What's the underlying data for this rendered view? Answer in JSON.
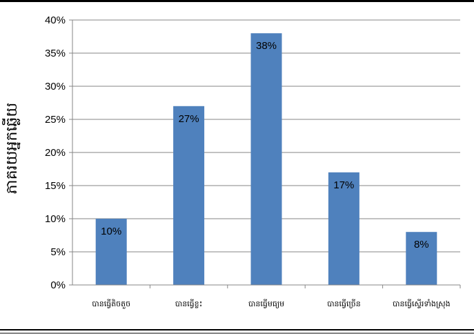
{
  "chart_data": {
    "type": "bar",
    "categories": [
      "បានធ្វើតិចតួច",
      "បានធ្វើខ្លះ",
      "បានធ្វើមធ្យម",
      "បានធ្វើច្រើន",
      "បានធ្វើស្ទើរទាំងស្រុង"
    ],
    "values": [
      10,
      27,
      38,
      17,
      8
    ],
    "data_labels": [
      "10%",
      "27%",
      "38%",
      "17%",
      "8%"
    ],
    "yticks": [
      "0%",
      "5%",
      "10%",
      "15%",
      "20%",
      "25%",
      "30%",
      "35%",
      "40%"
    ],
    "ylim": [
      0,
      40
    ],
    "ylabel": "ភាគរយអ្នកឆ្លើយ",
    "xlabel": "",
    "title": "",
    "grid": true,
    "legend": "none",
    "bar_color": "#4F81BD"
  }
}
